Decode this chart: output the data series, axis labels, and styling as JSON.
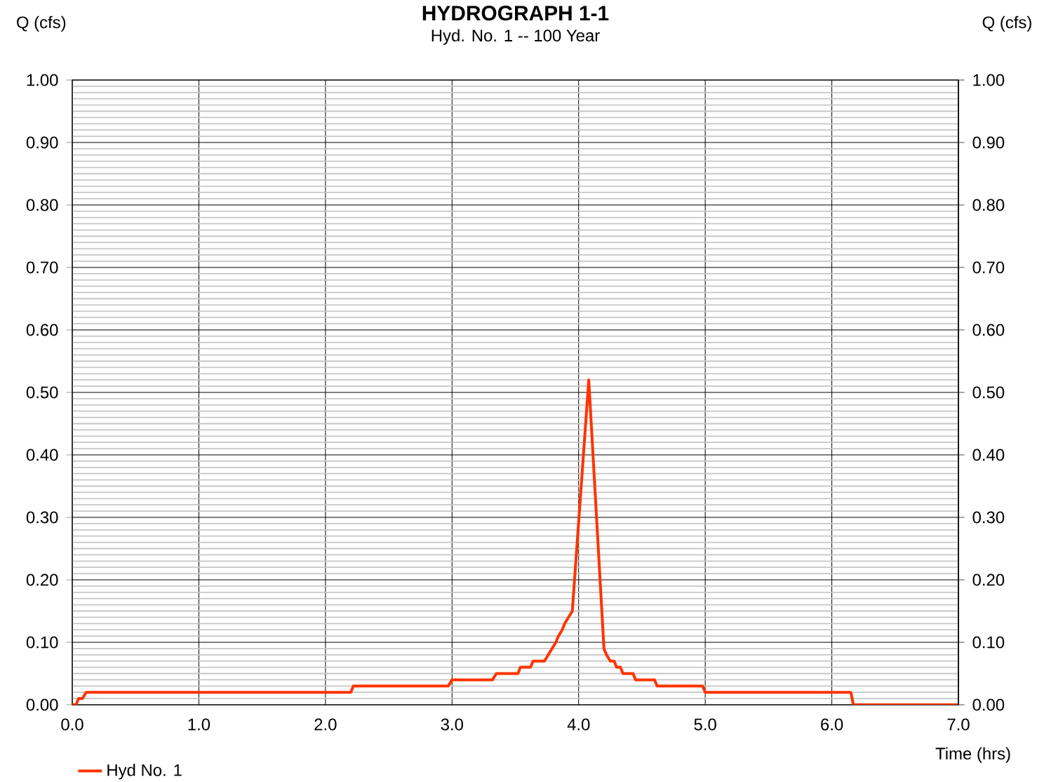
{
  "chart_data": {
    "type": "line",
    "title": "HYDROGRAPH 1-1",
    "subtitle": "Hyd. No. 1 -- 100 Year",
    "xlabel": "Time (hrs)",
    "ylabel": "Q (cfs)",
    "y2label": "Q (cfs)",
    "xlim": [
      0,
      7
    ],
    "ylim": [
      0,
      1
    ],
    "y2lim": [
      0,
      1
    ],
    "xticks": [
      {
        "value": 0,
        "label": "0.0"
      },
      {
        "value": 1,
        "label": "1.0"
      },
      {
        "value": 2,
        "label": "2.0"
      },
      {
        "value": 3,
        "label": "3.0"
      },
      {
        "value": 4,
        "label": "4.0"
      },
      {
        "value": 5,
        "label": "5.0"
      },
      {
        "value": 6,
        "label": "6.0"
      },
      {
        "value": 7,
        "label": "7.0"
      }
    ],
    "yticks": [
      {
        "value": 0,
        "label": "0.00"
      },
      {
        "value": 0.1,
        "label": "0.10"
      },
      {
        "value": 0.2,
        "label": "0.20"
      },
      {
        "value": 0.3,
        "label": "0.30"
      },
      {
        "value": 0.4,
        "label": "0.40"
      },
      {
        "value": 0.5,
        "label": "0.50"
      },
      {
        "value": 0.6,
        "label": "0.60"
      },
      {
        "value": 0.7,
        "label": "0.70"
      },
      {
        "value": 0.8,
        "label": "0.80"
      },
      {
        "value": 0.9,
        "label": "0.90"
      },
      {
        "value": 1,
        "label": "1.00"
      }
    ],
    "y2ticks": [
      {
        "value": 0,
        "label": "0.00"
      },
      {
        "value": 0.1,
        "label": "0.10"
      },
      {
        "value": 0.2,
        "label": "0.20"
      },
      {
        "value": 0.3,
        "label": "0.30"
      },
      {
        "value": 0.4,
        "label": "0.40"
      },
      {
        "value": 0.5,
        "label": "0.50"
      },
      {
        "value": 0.6,
        "label": "0.60"
      },
      {
        "value": 0.7,
        "label": "0.70"
      },
      {
        "value": 0.8,
        "label": "0.80"
      },
      {
        "value": 0.9,
        "label": "0.90"
      },
      {
        "value": 1,
        "label": "1.00"
      }
    ],
    "grid": true,
    "legend": "bottom left",
    "marker": "none",
    "line_style": "solid",
    "series": [
      {
        "name": "Hyd No. 1",
        "color": "#ff3300",
        "x": [
          0,
          0.03,
          0.05,
          0.08,
          0.11,
          2.2,
          2.22,
          2.97,
          3.0,
          3.32,
          3.35,
          3.52,
          3.54,
          3.62,
          3.64,
          3.73,
          3.76,
          3.79,
          3.82,
          3.84,
          3.87,
          3.89,
          3.92,
          3.95,
          4.08,
          4.2,
          4.22,
          4.25,
          4.28,
          4.3,
          4.33,
          4.35,
          4.43,
          4.45,
          4.6,
          4.62,
          4.98,
          5.0,
          6.15,
          6.17,
          7.0
        ],
        "values": [
          0,
          0,
          0.01,
          0.01,
          0.02,
          0.02,
          0.03,
          0.03,
          0.04,
          0.04,
          0.05,
          0.05,
          0.06,
          0.06,
          0.07,
          0.07,
          0.08,
          0.09,
          0.1,
          0.11,
          0.12,
          0.13,
          0.14,
          0.15,
          0.52,
          0.09,
          0.08,
          0.07,
          0.07,
          0.06,
          0.06,
          0.05,
          0.05,
          0.04,
          0.04,
          0.03,
          0.03,
          0.02,
          0.02,
          0,
          0
        ]
      }
    ]
  }
}
